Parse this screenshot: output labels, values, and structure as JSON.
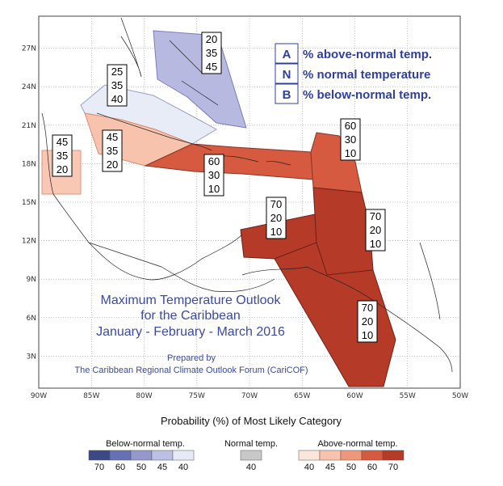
{
  "axes": {
    "lat_ticks": [
      {
        "label": "27N",
        "lat": 27
      },
      {
        "label": "24N",
        "lat": 24
      },
      {
        "label": "21N",
        "lat": 21
      },
      {
        "label": "18N",
        "lat": 18
      },
      {
        "label": "15N",
        "lat": 15
      },
      {
        "label": "12N",
        "lat": 12
      },
      {
        "label": "9N",
        "lat": 9
      },
      {
        "label": "6N",
        "lat": 6
      },
      {
        "label": "3N",
        "lat": 3
      }
    ],
    "lon_ticks": [
      {
        "label": "90W",
        "lon": -90
      },
      {
        "label": "85W",
        "lon": -85
      },
      {
        "label": "80W",
        "lon": -80
      },
      {
        "label": "75W",
        "lon": -75
      },
      {
        "label": "70W",
        "lon": -70
      },
      {
        "label": "65W",
        "lon": -65
      },
      {
        "label": "60W",
        "lon": -60
      },
      {
        "label": "55W",
        "lon": -55
      },
      {
        "label": "50W",
        "lon": -50
      }
    ]
  },
  "key": {
    "a_letter": "A",
    "a_text": "% above-normal temp.",
    "n_letter": "N",
    "n_text": "% normal temperature",
    "b_letter": "B",
    "b_text": "% below-normal temp."
  },
  "title": {
    "line1": "Maximum Temperature Outlook",
    "line2": "for the Caribbean",
    "line3": "January - February - March 2016"
  },
  "credit": {
    "line1": "Prepared by",
    "line2": "The Caribbean Regional Climate Outlook Forum (CariCOF)"
  },
  "regions": [
    {
      "name": "bahamas",
      "above": "20",
      "normal": "35",
      "below": "45",
      "color": "#b7b9e0"
    },
    {
      "name": "cuba",
      "above": "25",
      "normal": "35",
      "below": "40",
      "color": "#e8ecf7"
    },
    {
      "name": "jamaica-cayman",
      "above": "45",
      "normal": "35",
      "below": "20",
      "color": "#f8c3ad"
    },
    {
      "name": "belize",
      "above": "45",
      "normal": "35",
      "below": "20",
      "color": "#f8c3ad"
    },
    {
      "name": "greater-antilles",
      "above": "60",
      "normal": "30",
      "below": "10",
      "color": "#d55a40"
    },
    {
      "name": "leeward-islands",
      "above": "60",
      "normal": "30",
      "below": "10",
      "color": "#d55a40"
    },
    {
      "name": "caribbean-south",
      "above": "70",
      "normal": "20",
      "below": "10",
      "color": "#b53a28"
    },
    {
      "name": "windward-islands",
      "above": "70",
      "normal": "20",
      "below": "10",
      "color": "#b53a28"
    },
    {
      "name": "guianas",
      "above": "70",
      "normal": "20",
      "below": "10",
      "color": "#b53a28"
    }
  ],
  "legend": {
    "title": "Probability (%) of Most Likely Category",
    "below": {
      "label": "Below-normal temp.",
      "values": [
        "70",
        "60",
        "50",
        "45",
        "40"
      ],
      "colors": [
        "#3b4a86",
        "#6670b4",
        "#9498cb",
        "#bcc0e3",
        "#e6e9f6"
      ]
    },
    "normal": {
      "label": "Normal temp.",
      "values": [
        "40"
      ],
      "colors": [
        "#c8c8c8"
      ]
    },
    "above": {
      "label": "Above-normal temp.",
      "values": [
        "40",
        "45",
        "50",
        "60",
        "70"
      ],
      "colors": [
        "#fbe6dc",
        "#f8c3ad",
        "#f0967a",
        "#d55a40",
        "#b53a28"
      ]
    }
  }
}
